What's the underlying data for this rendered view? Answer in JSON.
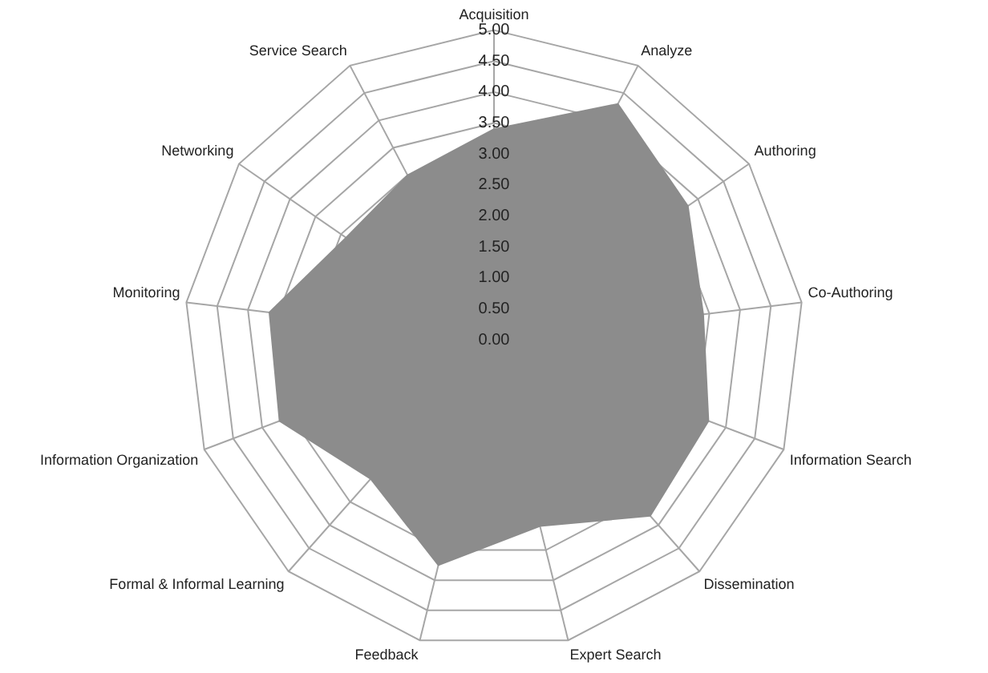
{
  "chart_data": {
    "type": "radar",
    "categories": [
      "Acquisition",
      "Analyze",
      "Authoring",
      "Co-Authoring",
      "Information Search",
      "Dissemination",
      "Expert Search",
      "Feedback",
      "Formal & Informal Learning",
      "Information Organization",
      "Monitoring",
      "Networking",
      "Service Search"
    ],
    "series": [
      {
        "color": "#8c8c8c",
        "values": [
          3.4,
          4.3,
          3.8,
          3.4,
          3.7,
          3.8,
          3.1,
          3.75,
          3.0,
          3.7,
          3.65,
          2.9,
          3.0
        ]
      }
    ],
    "ylim": [
      0,
      5
    ],
    "yticks": [
      {
        "value": 0,
        "label": "0.00"
      },
      {
        "value": 0.5,
        "label": "0.50"
      },
      {
        "value": 1,
        "label": "1.00"
      },
      {
        "value": 1.5,
        "label": "1.50"
      },
      {
        "value": 2,
        "label": "2.00"
      },
      {
        "value": 2.5,
        "label": "2.50"
      },
      {
        "value": 3,
        "label": "3.00"
      },
      {
        "value": 3.5,
        "label": "3.50"
      },
      {
        "value": 4,
        "label": "4.00"
      },
      {
        "value": 4.5,
        "label": "4.50"
      },
      {
        "value": 5,
        "label": "5.00"
      }
    ],
    "grid": true,
    "legend": false,
    "marker": "none"
  }
}
